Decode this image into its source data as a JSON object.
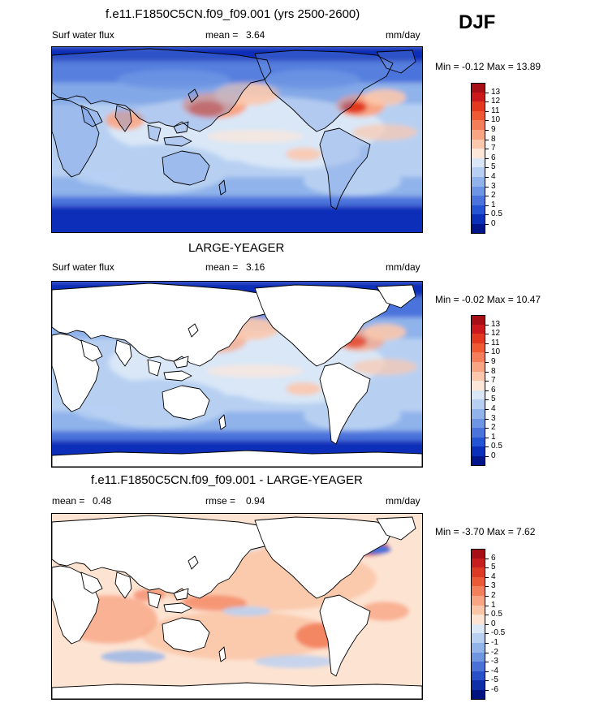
{
  "season": "DJF",
  "panels": [
    {
      "title": "f.e11.F1850C5CN.f09_f09.001 (yrs 2500-2600)",
      "variable": "Surf water flux",
      "stat1_label": "mean =",
      "stat1_value": "3.64",
      "stat2_label": "",
      "stat2_value": "",
      "units": "mm/day",
      "minmax": "Min = -0.12 Max = 13.89",
      "levels": [
        "13",
        "12",
        "11",
        "10",
        "9",
        "8",
        "7",
        "6",
        "5",
        "4",
        "3",
        "2",
        "1",
        "0.5",
        "0"
      ],
      "colors": [
        "#a50f15",
        "#cb181d",
        "#e2381f",
        "#ef5a34",
        "#f57e5a",
        "#f8a584",
        "#fbc8ad",
        "#fde7d8",
        "#d9e7f7",
        "#b7d0f2",
        "#8fb3ea",
        "#6d95e3",
        "#4b73dc",
        "#2453d3",
        "#0a2fb8",
        "#00158a"
      ],
      "land_white": false
    },
    {
      "title": "LARGE-YEAGER",
      "variable": "Surf water flux",
      "stat1_label": "mean =",
      "stat1_value": "3.16",
      "stat2_label": "",
      "stat2_value": "",
      "units": "mm/day",
      "minmax": "Min = -0.02 Max = 10.47",
      "levels": [
        "13",
        "12",
        "11",
        "10",
        "9",
        "8",
        "7",
        "6",
        "5",
        "4",
        "3",
        "2",
        "1",
        "0.5",
        "0"
      ],
      "colors": [
        "#a50f15",
        "#cb181d",
        "#e2381f",
        "#ef5a34",
        "#f57e5a",
        "#f8a584",
        "#fbc8ad",
        "#fde7d8",
        "#d9e7f7",
        "#b7d0f2",
        "#8fb3ea",
        "#6d95e3",
        "#4b73dc",
        "#2453d3",
        "#0a2fb8",
        "#00158a"
      ],
      "land_white": true
    },
    {
      "title": "f.e11.F1850C5CN.f09_f09.001 - LARGE-YEAGER",
      "variable": "",
      "stat1_label": "mean =",
      "stat1_value": "0.48",
      "stat2_label": "rmse =",
      "stat2_value": "0.94",
      "units": "mm/day",
      "minmax": "Min = -3.70 Max = 7.62",
      "levels": [
        "6",
        "5",
        "4",
        "3",
        "2",
        "1",
        "0.5",
        "0",
        "-0.5",
        "-1",
        "-2",
        "-3",
        "-4",
        "-5",
        "-6"
      ],
      "colors": [
        "#a50f15",
        "#c81d1d",
        "#dc3a25",
        "#ea5a37",
        "#f3805c",
        "#f8a584",
        "#fbc6a8",
        "#fde3d2",
        "#dde8f7",
        "#b9d0f1",
        "#93b4e8",
        "#6f95e0",
        "#4a71d6",
        "#2850c8",
        "#0f2fa8",
        "#00137e"
      ],
      "land_white": true
    }
  ]
}
